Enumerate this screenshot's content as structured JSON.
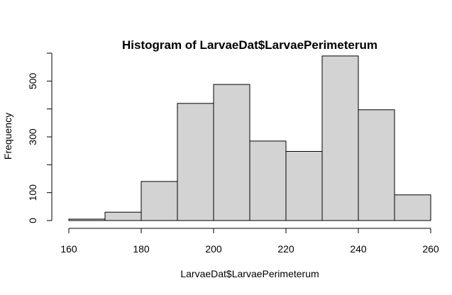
{
  "chart_data": {
    "type": "bar",
    "title": "Histogram of LarvaeDat$LarvaePerimeterum",
    "xlabel": "LarvaeDat$LarvaePerimeterum",
    "ylabel": "Frequency",
    "bins": [
      {
        "from": 160,
        "to": 170,
        "count": 5
      },
      {
        "from": 170,
        "to": 180,
        "count": 30
      },
      {
        "from": 180,
        "to": 190,
        "count": 140
      },
      {
        "from": 190,
        "to": 200,
        "count": 420
      },
      {
        "from": 200,
        "to": 210,
        "count": 488
      },
      {
        "from": 210,
        "to": 220,
        "count": 285
      },
      {
        "from": 220,
        "to": 230,
        "count": 248
      },
      {
        "from": 230,
        "to": 240,
        "count": 590
      },
      {
        "from": 240,
        "to": 250,
        "count": 397
      },
      {
        "from": 250,
        "to": 260,
        "count": 92
      }
    ],
    "xlim": [
      160,
      260
    ],
    "ylim": [
      0,
      600
    ],
    "x_ticks": [
      160,
      180,
      200,
      220,
      240,
      260
    ],
    "y_ticks": [
      0,
      100,
      300,
      500
    ],
    "y_minor_ticks": [
      200,
      400,
      600
    ],
    "grid": false,
    "bar_fill": "#d3d3d3",
    "bar_stroke": "#000000"
  }
}
